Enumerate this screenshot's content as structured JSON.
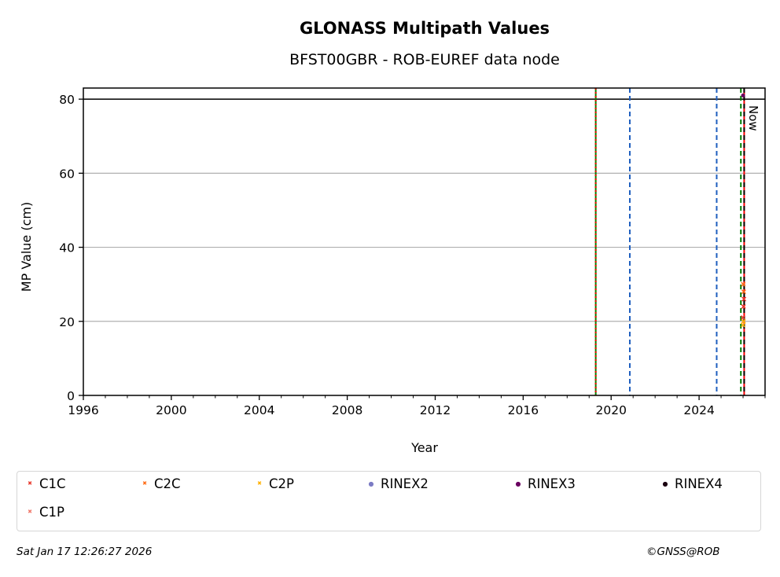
{
  "chart_data": {
    "type": "scatter",
    "title": "GLONASS Multipath Values",
    "subtitle": "BFST00GBR - ROB-EUREF data node",
    "xlabel": "Year",
    "ylabel": "MP Value (cm)",
    "xlim": [
      1996,
      2027
    ],
    "ylim": [
      0,
      83
    ],
    "xticks": [
      "1996",
      "2000",
      "2004",
      "2008",
      "2012",
      "2016",
      "2020",
      "2024"
    ],
    "yticks": [
      "0",
      "20",
      "40",
      "60",
      "80"
    ],
    "grid": "horizontal",
    "legend_position": "bottom",
    "reference_line": {
      "y": 80,
      "color": "#000000"
    },
    "vertical_lines": [
      {
        "x": 2019.3,
        "color": "#008000",
        "style": "solid"
      },
      {
        "x": 2019.3,
        "color": "#ff0000",
        "style": "dotted"
      },
      {
        "x": 2020.85,
        "color": "#1f5fbf",
        "style": "dashed"
      },
      {
        "x": 2024.8,
        "color": "#1f5fbf",
        "style": "dashed"
      },
      {
        "x": 2025.9,
        "color": "#008000",
        "style": "dashed"
      },
      {
        "x": 2026.05,
        "color": "#ff0000",
        "style": "solid"
      },
      {
        "x": 2026.05,
        "color": "#000000",
        "style": "dashed"
      }
    ],
    "now_label": "Now",
    "series": [
      {
        "name": "C1C",
        "marker": "x",
        "color": "#e8382b",
        "points": [
          [
            2026.0,
            21
          ],
          [
            2026.02,
            24
          ],
          [
            2026.04,
            26
          ]
        ]
      },
      {
        "name": "C2C",
        "marker": "x",
        "color": "#ff6a13",
        "points": [
          [
            2026.01,
            30
          ],
          [
            2026.03,
            28
          ]
        ]
      },
      {
        "name": "C2P",
        "marker": "x",
        "color": "#ffb000",
        "points": [
          [
            2026.0,
            19
          ],
          [
            2026.02,
            20
          ]
        ]
      },
      {
        "name": "RINEX2",
        "marker": "dot",
        "color": "#7b7bc4",
        "points": []
      },
      {
        "name": "RINEX3",
        "marker": "dot",
        "color": "#6a0060",
        "points": [
          [
            2026.0,
            81
          ]
        ]
      },
      {
        "name": "RINEX4",
        "marker": "dot",
        "color": "#1a0010",
        "points": []
      },
      {
        "name": "C1P",
        "marker": "x",
        "color": "#f0786a",
        "points": []
      }
    ]
  },
  "footer": {
    "timestamp": "Sat Jan 17 12:26:27 2026",
    "copyright": "©GNSS@ROB"
  }
}
